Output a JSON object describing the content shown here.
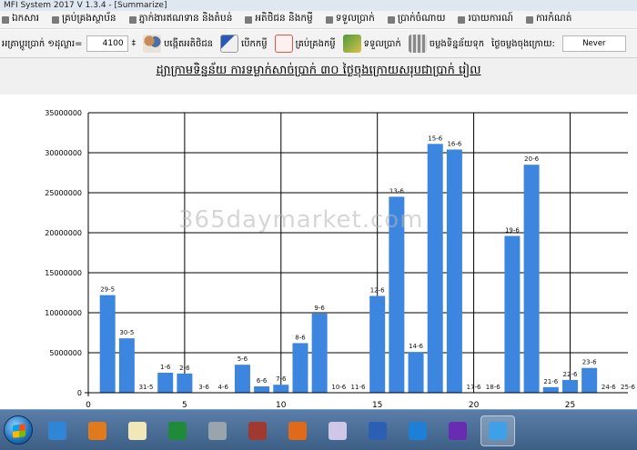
{
  "window": {
    "title": "MFI System 2017 V 1.3.4 - [Summarize]"
  },
  "menu": {
    "items": [
      {
        "label": "ឯកសារ"
      },
      {
        "label": "គ្រប់គ្រងស្ថាប័ន"
      },
      {
        "label": "ភ្នាក់ងារឥណទាន និងតំបន់"
      },
      {
        "label": "អតិថិជន និងកម្ចី"
      },
      {
        "label": "ទទួលប្រាក់"
      },
      {
        "label": "ប្រាក់ចំណាយ"
      },
      {
        "label": "របាយការណ៍"
      },
      {
        "label": "ការកំណត់"
      }
    ]
  },
  "toolbar": {
    "rate_label": "អត្រាប្ដូរប្រាក់ ១ដុល្លារ=",
    "rate_value": "4100",
    "spin": "‡",
    "buttons": [
      {
        "label": "បង្កើតអតិថិជន",
        "icon": "people-icon"
      },
      {
        "label": "បើកកម្ចី",
        "icon": "pen-icon"
      },
      {
        "label": "គ្រប់គ្រងកម្ចី",
        "icon": "check-icon"
      },
      {
        "label": "ទទួលប្រាក់",
        "icon": "money-icon"
      },
      {
        "label": "ចម្លងទិន្នន័យទុក",
        "icon": "calculator-icon"
      }
    ],
    "last_backup_label": "ថ្ងៃចម្លងចុងក្រោយ:",
    "last_backup_value": "Never"
  },
  "title": "ដ្យាក្រាមទិន្នន័យ ការទម្លាក់សាច់ប្រាក់ ៣០ ថ្ងៃចុងក្រោយសរុបជាប្រាក់ រៀល",
  "watermark": "365daymarket.com",
  "chart_data": {
    "type": "bar",
    "color": "#3d86e0",
    "xlim": [
      0,
      28
    ],
    "ylim": [
      0,
      35000000
    ],
    "xticks": [
      0,
      5,
      10,
      15,
      20,
      25
    ],
    "yticks": [
      0,
      5000000,
      10000000,
      15000000,
      20000000,
      25000000,
      30000000,
      35000000
    ],
    "ytick_labels": [
      "0",
      "5000000",
      "10000000",
      "15000000",
      "20000000",
      "25000000",
      "30000000",
      "35000000"
    ],
    "grid": true,
    "points": [
      {
        "x": 1,
        "label": "29-5",
        "value": 12200000
      },
      {
        "x": 2,
        "label": "30-5",
        "value": 6800000
      },
      {
        "x": 3,
        "label": "31-5",
        "value": 0
      },
      {
        "x": 4,
        "label": "1-6",
        "value": 2500000
      },
      {
        "x": 5,
        "label": "2-6",
        "value": 2400000
      },
      {
        "x": 6,
        "label": "3-6",
        "value": 0
      },
      {
        "x": 7,
        "label": "4-6",
        "value": 0
      },
      {
        "x": 8,
        "label": "5-6",
        "value": 3500000
      },
      {
        "x": 9,
        "label": "6-6",
        "value": 800000
      },
      {
        "x": 10,
        "label": "7-6",
        "value": 1000000
      },
      {
        "x": 11,
        "label": "8-6",
        "value": 6200000
      },
      {
        "x": 12,
        "label": "9-6",
        "value": 9900000
      },
      {
        "x": 13,
        "label": "10-6",
        "value": 0
      },
      {
        "x": 14,
        "label": "11-6",
        "value": 0
      },
      {
        "x": 15,
        "label": "12-6",
        "value": 12100000
      },
      {
        "x": 16,
        "label": "13-6",
        "value": 24500000
      },
      {
        "x": 17,
        "label": "14-6",
        "value": 5100000
      },
      {
        "x": 18,
        "label": "15-6",
        "value": 31100000
      },
      {
        "x": 19,
        "label": "16-6",
        "value": 30400000
      },
      {
        "x": 20,
        "label": "17-6",
        "value": 0
      },
      {
        "x": 21,
        "label": "18-6",
        "value": 0
      },
      {
        "x": 22,
        "label": "19-6",
        "value": 19600000
      },
      {
        "x": 23,
        "label": "20-6",
        "value": 28500000
      },
      {
        "x": 24,
        "label": "21-6",
        "value": 700000
      },
      {
        "x": 25,
        "label": "22-6",
        "value": 1600000
      },
      {
        "x": 26,
        "label": "23-6",
        "value": 3100000
      },
      {
        "x": 27,
        "label": "24-6",
        "value": 0
      },
      {
        "x": 28,
        "label": "25-6",
        "value": 0
      }
    ]
  },
  "taskbar": {
    "apps": [
      {
        "icon": "internet-explorer-icon"
      },
      {
        "icon": "media-player-icon"
      },
      {
        "icon": "notepad-icon"
      },
      {
        "icon": "excel-icon"
      },
      {
        "icon": "tools-icon"
      },
      {
        "icon": "book-icon"
      },
      {
        "icon": "firefox-icon"
      },
      {
        "icon": "paint-icon"
      },
      {
        "icon": "word-icon"
      },
      {
        "icon": "teamviewer-icon"
      },
      {
        "icon": "visual-studio-icon"
      },
      {
        "icon": "mfi-system-icon"
      }
    ]
  }
}
